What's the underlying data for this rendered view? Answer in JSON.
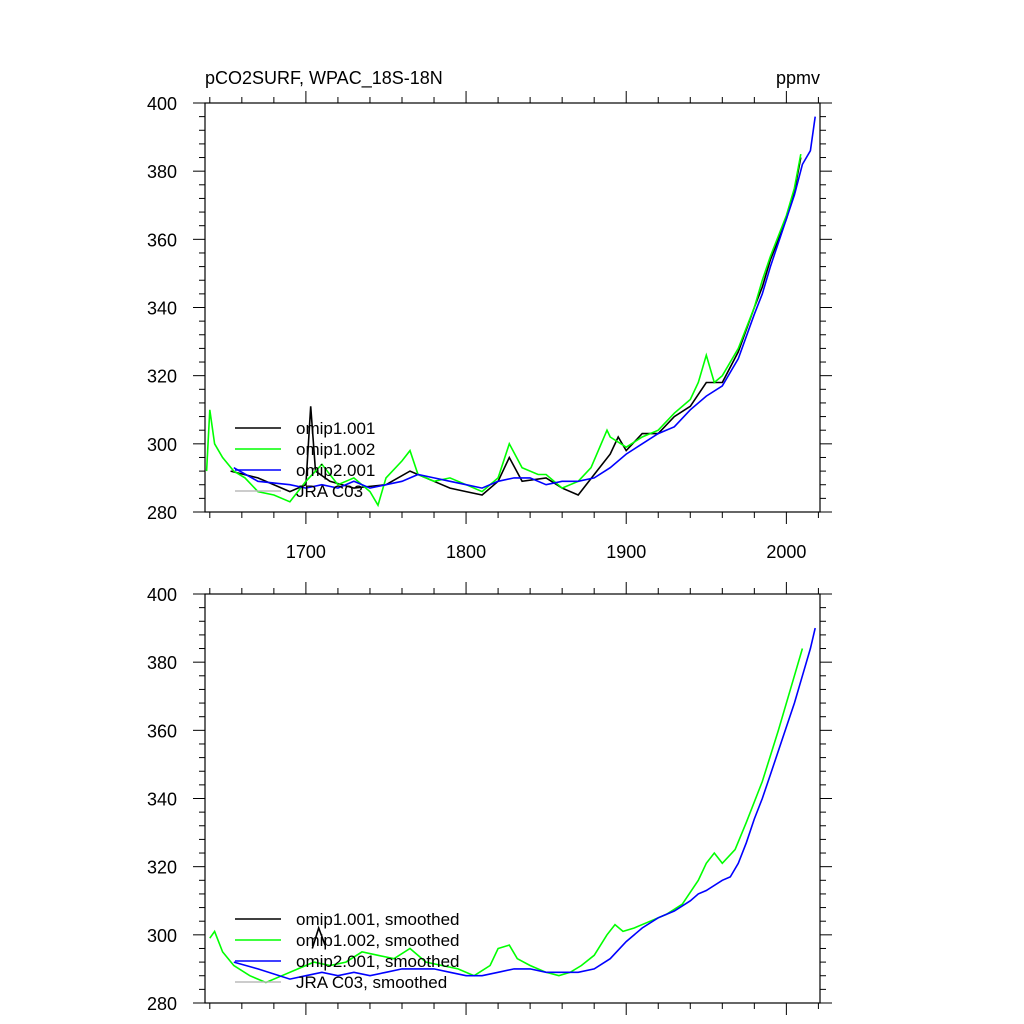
{
  "chart_data": [
    {
      "type": "line",
      "title": "pCO2SURF, WPAC_18S-18N",
      "units": "ppmv",
      "xlabel": "",
      "ylabel": "",
      "xlim": [
        1637,
        2021
      ],
      "ylim": [
        280,
        400
      ],
      "xticks": [
        1700,
        1800,
        1900,
        2000
      ],
      "xtick_labels": [
        "1700",
        "1800",
        "1900",
        "2000"
      ],
      "yticks": [
        280,
        300,
        320,
        340,
        360,
        380,
        400
      ],
      "ytick_labels": [
        "280",
        "300",
        "320",
        "340",
        "360",
        "380",
        "400"
      ],
      "legend_position": "lower-left",
      "series": [
        {
          "name": "omip1.001",
          "color": "#000000",
          "x": [
            1653,
            1670,
            1690,
            1700,
            1703,
            1706,
            1715,
            1730,
            1750,
            1765,
            1780,
            1790,
            1800,
            1810,
            1820,
            1827,
            1835,
            1850,
            1860,
            1870,
            1880,
            1890,
            1895,
            1900,
            1910,
            1920,
            1930,
            1940,
            1950,
            1960,
            1970,
            1980,
            1985,
            1990,
            1995,
            2000,
            2005,
            2009
          ],
          "y": [
            292,
            290,
            286,
            288,
            311,
            292,
            289,
            287,
            288,
            292,
            289,
            287,
            286,
            285,
            289,
            296,
            289,
            290,
            287,
            285,
            291,
            297,
            302,
            298,
            303,
            303,
            308,
            311,
            318,
            318,
            327,
            340,
            346,
            354,
            360,
            366,
            374,
            384
          ]
        },
        {
          "name": "omip1.002",
          "color": "#00ff00",
          "x": [
            1638,
            1640,
            1643,
            1648,
            1655,
            1662,
            1670,
            1680,
            1690,
            1700,
            1710,
            1720,
            1730,
            1740,
            1745,
            1750,
            1760,
            1765,
            1770,
            1780,
            1790,
            1800,
            1810,
            1820,
            1827,
            1835,
            1845,
            1850,
            1860,
            1870,
            1878,
            1888,
            1890,
            1900,
            1910,
            1920,
            1930,
            1940,
            1945,
            1950,
            1955,
            1960,
            1970,
            1980,
            1985,
            1990,
            1995,
            2000,
            2005,
            2009
          ],
          "y": [
            292,
            310,
            300,
            296,
            292,
            290,
            286,
            285,
            283,
            289,
            294,
            288,
            290,
            286,
            282,
            290,
            295,
            298,
            291,
            289,
            290,
            288,
            286,
            290,
            300,
            293,
            291,
            291,
            287,
            289,
            293,
            304,
            302,
            299,
            302,
            304,
            309,
            313,
            318,
            326,
            318,
            320,
            328,
            340,
            348,
            355,
            361,
            367,
            375,
            385
          ]
        },
        {
          "name": "omip2.001",
          "color": "#0000ff",
          "x": [
            1655,
            1670,
            1690,
            1700,
            1710,
            1720,
            1730,
            1740,
            1750,
            1760,
            1770,
            1780,
            1790,
            1800,
            1810,
            1820,
            1830,
            1840,
            1850,
            1860,
            1870,
            1880,
            1890,
            1900,
            1910,
            1920,
            1930,
            1940,
            1950,
            1960,
            1970,
            1980,
            1985,
            1990,
            1995,
            2000,
            2005,
            2010,
            2015,
            2018
          ],
          "y": [
            293,
            289,
            288,
            287,
            288,
            287,
            289,
            287,
            288,
            289,
            291,
            290,
            289,
            288,
            287,
            289,
            290,
            290,
            288,
            289,
            289,
            290,
            293,
            297,
            300,
            303,
            305,
            310,
            314,
            317,
            325,
            338,
            344,
            352,
            359,
            366,
            373,
            382,
            386,
            396
          ]
        },
        {
          "name": "JRA C03",
          "color": "#bbbbbb",
          "x": [],
          "y": []
        }
      ]
    },
    {
      "type": "line",
      "title": "",
      "xlabel": "",
      "ylabel": "",
      "xlim": [
        1637,
        2021
      ],
      "ylim": [
        280,
        400
      ],
      "xticks": [
        1700,
        1800,
        1900,
        2000
      ],
      "yticks": [
        280,
        300,
        320,
        340,
        360,
        380,
        400
      ],
      "ytick_labels": [
        "280",
        "300",
        "320",
        "340",
        "360",
        "380",
        "400"
      ],
      "legend_position": "lower-left",
      "series": [
        {
          "name": "omip1.001, smoothed",
          "color": "#000000",
          "x": [
            1704,
            1708,
            1712
          ],
          "y": [
            296,
            302,
            297
          ]
        },
        {
          "name": "omip1.002, smoothed",
          "color": "#00ff00",
          "x": [
            1640,
            1643,
            1648,
            1655,
            1665,
            1675,
            1685,
            1695,
            1705,
            1715,
            1725,
            1735,
            1745,
            1755,
            1765,
            1775,
            1785,
            1795,
            1805,
            1815,
            1820,
            1827,
            1832,
            1840,
            1850,
            1858,
            1865,
            1872,
            1880,
            1888,
            1893,
            1898,
            1905,
            1915,
            1925,
            1935,
            1945,
            1950,
            1955,
            1960,
            1968,
            1975,
            1985,
            1995,
            2005,
            2010
          ],
          "y": [
            299,
            301,
            295,
            291,
            288,
            286,
            288,
            290,
            292,
            291,
            292,
            295,
            294,
            293,
            296,
            292,
            291,
            290,
            288,
            291,
            296,
            297,
            293,
            291,
            289,
            288,
            289,
            291,
            294,
            300,
            303,
            301,
            302,
            304,
            306,
            309,
            316,
            321,
            324,
            321,
            325,
            333,
            345,
            360,
            376,
            384
          ]
        },
        {
          "name": "omip2.001, smoothed",
          "color": "#0000ff",
          "x": [
            1655,
            1670,
            1690,
            1700,
            1710,
            1720,
            1730,
            1740,
            1750,
            1760,
            1770,
            1780,
            1790,
            1800,
            1810,
            1820,
            1830,
            1840,
            1850,
            1860,
            1870,
            1880,
            1890,
            1900,
            1910,
            1920,
            1930,
            1940,
            1945,
            1950,
            1960,
            1965,
            1970,
            1975,
            1980,
            1985,
            1990,
            1995,
            2000,
            2005,
            2010,
            2015,
            2018
          ],
          "y": [
            292,
            290,
            287,
            288,
            289,
            288,
            289,
            288,
            289,
            290,
            290,
            290,
            289,
            288,
            288,
            289,
            290,
            290,
            289,
            289,
            289,
            290,
            293,
            298,
            302,
            305,
            307,
            310,
            312,
            313,
            316,
            317,
            321,
            327,
            334,
            340,
            347,
            354,
            361,
            368,
            376,
            384,
            390
          ]
        },
        {
          "name": "JRA C03, smoothed",
          "color": "#bbbbbb",
          "x": [],
          "y": []
        }
      ]
    }
  ]
}
